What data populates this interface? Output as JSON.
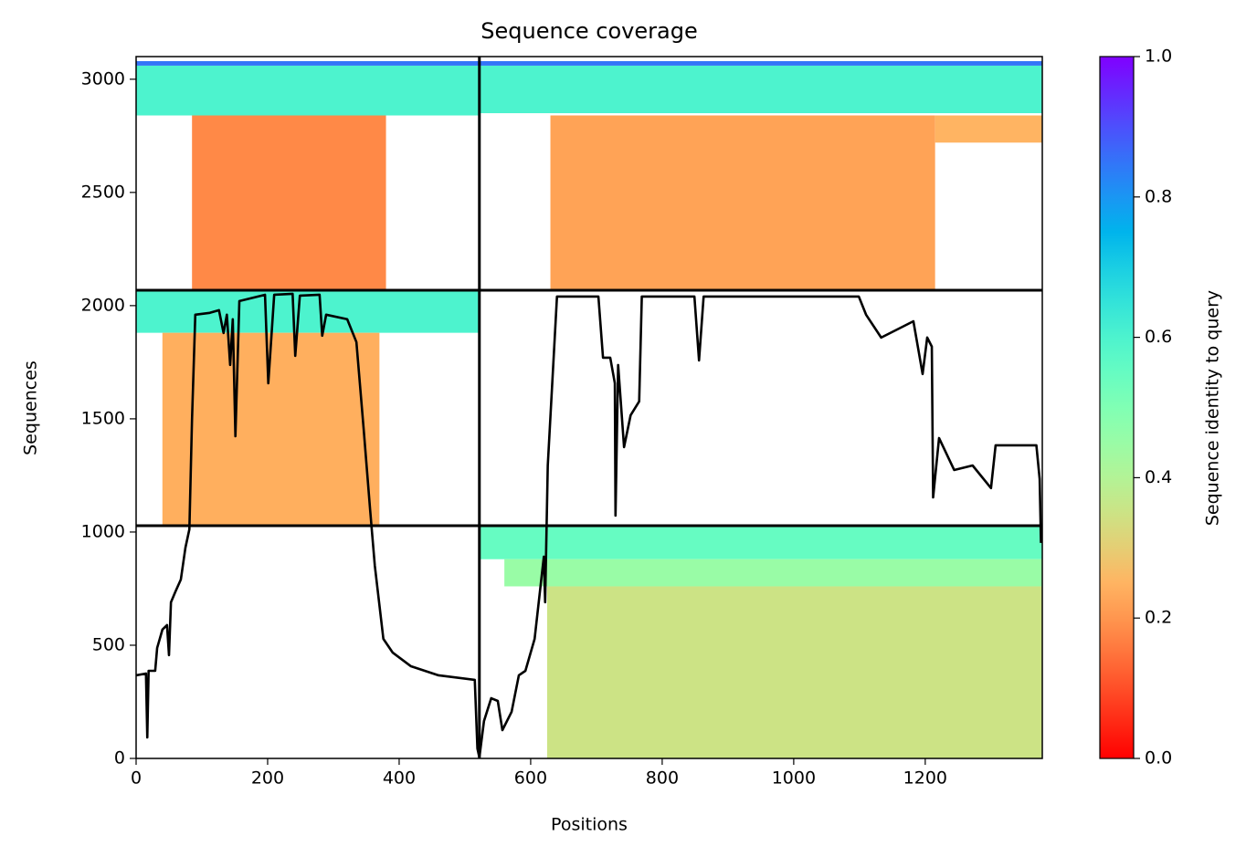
{
  "chart_data": {
    "type": "coverage",
    "title": "Sequence coverage",
    "xlabel": "Positions",
    "ylabel": "Sequences",
    "colorbar_label": "Sequence identity to query",
    "colormap": "rainbow_r",
    "xlim": [
      0,
      1378
    ],
    "ylim": [
      0,
      3100
    ],
    "xticks": [
      0,
      200,
      400,
      600,
      800,
      1000,
      1200
    ],
    "yticks": [
      0,
      500,
      1000,
      1500,
      2000,
      2500,
      3000
    ],
    "clim": [
      0,
      1
    ],
    "cticks": [
      {
        "value": 0,
        "label": "0.0"
      },
      0.2,
      0.4,
      0.6,
      0.8,
      {
        "value": 1,
        "label": "1.0"
      }
    ],
    "boundaries_x": [
      522
    ],
    "boundaries_y": [
      1028,
      2068
    ],
    "blocks": [
      {
        "x": [
          0,
          522
        ],
        "y": [
          2840,
          3060
        ],
        "identity": 0.6
      },
      {
        "x": [
          522,
          1378
        ],
        "y": [
          2850,
          3060
        ],
        "identity": 0.6
      },
      {
        "x": [
          0,
          1378
        ],
        "y": [
          3060,
          3080
        ],
        "identity": 0.85
      },
      {
        "x": [
          85,
          380
        ],
        "y": [
          2068,
          2840
        ],
        "identity": 0.18
      },
      {
        "x": [
          630,
          1215
        ],
        "y": [
          2068,
          2840
        ],
        "identity": 0.22
      },
      {
        "x": [
          1215,
          1378
        ],
        "y": [
          2720,
          2840
        ],
        "identity": 0.25
      },
      {
        "x": [
          0,
          522
        ],
        "y": [
          1880,
          2068
        ],
        "identity": 0.6
      },
      {
        "x": [
          40,
          370
        ],
        "y": [
          1028,
          1880
        ],
        "identity": 0.24
      },
      {
        "x": [
          522,
          1378
        ],
        "y": [
          880,
          1028
        ],
        "identity": 0.55
      },
      {
        "x": [
          560,
          1378
        ],
        "y": [
          760,
          880
        ],
        "identity": 0.45
      },
      {
        "x": [
          625,
          1378
        ],
        "y": [
          0,
          760
        ],
        "identity": 0.35
      }
    ],
    "line": {
      "color": "#000000",
      "x": [
        0,
        15,
        17,
        19,
        29,
        32,
        40,
        47,
        50,
        53,
        60,
        68,
        75,
        81,
        85,
        90,
        112,
        126,
        133,
        138,
        143,
        147,
        151,
        157,
        196,
        201,
        210,
        238,
        242,
        249,
        279,
        283,
        289,
        321,
        335,
        346,
        356,
        363,
        376,
        390,
        418,
        460,
        515,
        519,
        522,
        529,
        540,
        550,
        557,
        571,
        582,
        592,
        606,
        620,
        622,
        626,
        640,
        703,
        710,
        721,
        728,
        729,
        733,
        742,
        752,
        765,
        769,
        849,
        856,
        863,
        1099,
        1110,
        1133,
        1182,
        1196,
        1203,
        1210,
        1212,
        1221,
        1244,
        1272,
        1300,
        1307,
        1369,
        1374,
        1376
      ],
      "values": [
        367,
        375,
        93,
        387,
        387,
        488,
        569,
        589,
        456,
        690,
        738,
        790,
        931,
        1012,
        1496,
        1960,
        1968,
        1980,
        1879,
        1960,
        1738,
        1940,
        1423,
        2020,
        2048,
        1657,
        2048,
        2052,
        1778,
        2044,
        2048,
        1867,
        1960,
        1940,
        1839,
        1456,
        1093,
        851,
        528,
        468,
        407,
        367,
        347,
        44,
        4,
        165,
        266,
        254,
        125,
        206,
        367,
        387,
        528,
        891,
        690,
        1294,
        2040,
        2040,
        1770,
        1770,
        1657,
        1073,
        1738,
        1375,
        1516,
        1577,
        2040,
        2040,
        1758,
        2040,
        2040,
        1960,
        1859,
        1931,
        1698,
        1859,
        1819,
        1153,
        1415,
        1274,
        1294,
        1194,
        1383,
        1383,
        1234,
        952
      ]
    }
  }
}
